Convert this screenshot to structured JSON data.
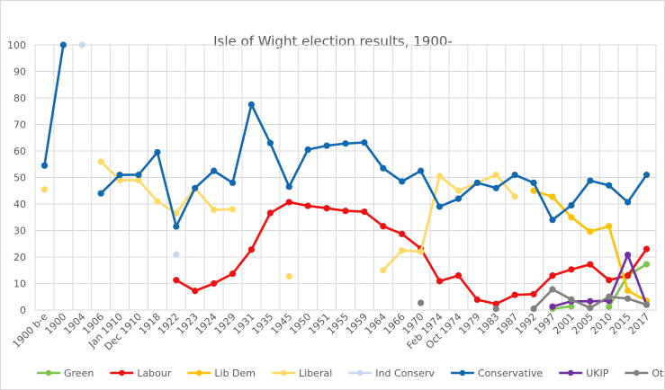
{
  "chart_data": {
    "type": "line",
    "title": "Isle of Wight election  results, 1900-",
    "xlabel": "",
    "ylabel": "",
    "ylim": [
      0,
      100
    ],
    "yticks": [
      0,
      10,
      20,
      30,
      40,
      50,
      60,
      70,
      80,
      90,
      100
    ],
    "grid": true,
    "legend_placement": "bottom",
    "categories": [
      "1900 b-e",
      "1900",
      "1904",
      "1906",
      "Jan 1910",
      "Dec 1910",
      "1918",
      "1922",
      "1923",
      "1924",
      "1929",
      "1931",
      "1935",
      "1945",
      "1950",
      "1951",
      "1955",
      "1959",
      "1964",
      "1966",
      "1970",
      "Feb 1974",
      "Oct 1974",
      "1979",
      "1983",
      "1987",
      "1992",
      "1997",
      "2001",
      "2005",
      "2010",
      "2015",
      "2017"
    ],
    "series": [
      {
        "name": "Green",
        "color": "#7CC650",
        "values": [
          null,
          null,
          null,
          null,
          null,
          null,
          null,
          null,
          null,
          null,
          null,
          null,
          null,
          null,
          null,
          null,
          null,
          null,
          null,
          null,
          null,
          null,
          null,
          null,
          null,
          null,
          null,
          0.5,
          1.4,
          null,
          1.2,
          13,
          17.3
        ]
      },
      {
        "name": "Labour",
        "color": "#F01010",
        "values": [
          null,
          null,
          null,
          null,
          null,
          null,
          null,
          11.3,
          7.2,
          10,
          13.7,
          22.8,
          36.6,
          40.7,
          39.3,
          38.4,
          37.4,
          37.1,
          31.6,
          28.7,
          23.2,
          10.9,
          13,
          3.9,
          2.3,
          5.7,
          6,
          13,
          15.3,
          17.2,
          11.3,
          13,
          23
        ]
      },
      {
        "name": "Lib Dem",
        "color": "#FFC000",
        "values": [
          null,
          null,
          null,
          null,
          null,
          null,
          null,
          null,
          null,
          null,
          null,
          null,
          null,
          null,
          null,
          null,
          null,
          null,
          null,
          null,
          null,
          null,
          null,
          null,
          null,
          null,
          45,
          42.7,
          35,
          29.6,
          31.6,
          7.3,
          3.5
        ]
      },
      {
        "name": "Liberal",
        "color": "#FFD966",
        "values": [
          45.5,
          null,
          null,
          56,
          49,
          49,
          41,
          36.5,
          46,
          37.8,
          38,
          null,
          null,
          12.7,
          null,
          null,
          null,
          null,
          15,
          22.5,
          22,
          50.5,
          45,
          48,
          51,
          42.8,
          null,
          null,
          null,
          null,
          null,
          null,
          null
        ]
      },
      {
        "name": "Ind Conserv",
        "color": "#C5D9F1",
        "values": [
          null,
          null,
          100,
          null,
          null,
          null,
          null,
          21,
          null,
          null,
          null,
          null,
          null,
          null,
          null,
          null,
          null,
          null,
          null,
          null,
          null,
          null,
          null,
          null,
          null,
          null,
          null,
          null,
          null,
          null,
          null,
          null,
          null
        ]
      },
      {
        "name": "Conservative",
        "color": "#1068B0",
        "values": [
          54.5,
          100,
          null,
          44,
          51,
          51,
          59.5,
          31.5,
          46,
          52.5,
          48,
          77.5,
          63,
          46.5,
          60.5,
          62,
          62.8,
          63.2,
          53.5,
          48.5,
          52.5,
          39,
          42,
          48,
          46,
          51,
          48,
          34,
          39.5,
          48.8,
          47,
          40.7,
          51
        ]
      },
      {
        "name": "UKIP",
        "color": "#7030A0",
        "values": [
          null,
          null,
          null,
          null,
          null,
          null,
          null,
          null,
          null,
          null,
          null,
          null,
          null,
          null,
          null,
          null,
          null,
          null,
          null,
          null,
          null,
          null,
          null,
          null,
          null,
          null,
          null,
          1.3,
          3.3,
          3.3,
          3.5,
          20.8,
          2
        ]
      },
      {
        "name": "Others",
        "color": "#808080",
        "values": [
          null,
          null,
          null,
          null,
          null,
          null,
          null,
          null,
          null,
          null,
          null,
          null,
          null,
          null,
          null,
          null,
          null,
          null,
          null,
          null,
          2.7,
          null,
          null,
          null,
          0.5,
          null,
          0.5,
          7.8,
          4,
          0.8,
          5,
          4.3,
          2
        ]
      }
    ]
  }
}
